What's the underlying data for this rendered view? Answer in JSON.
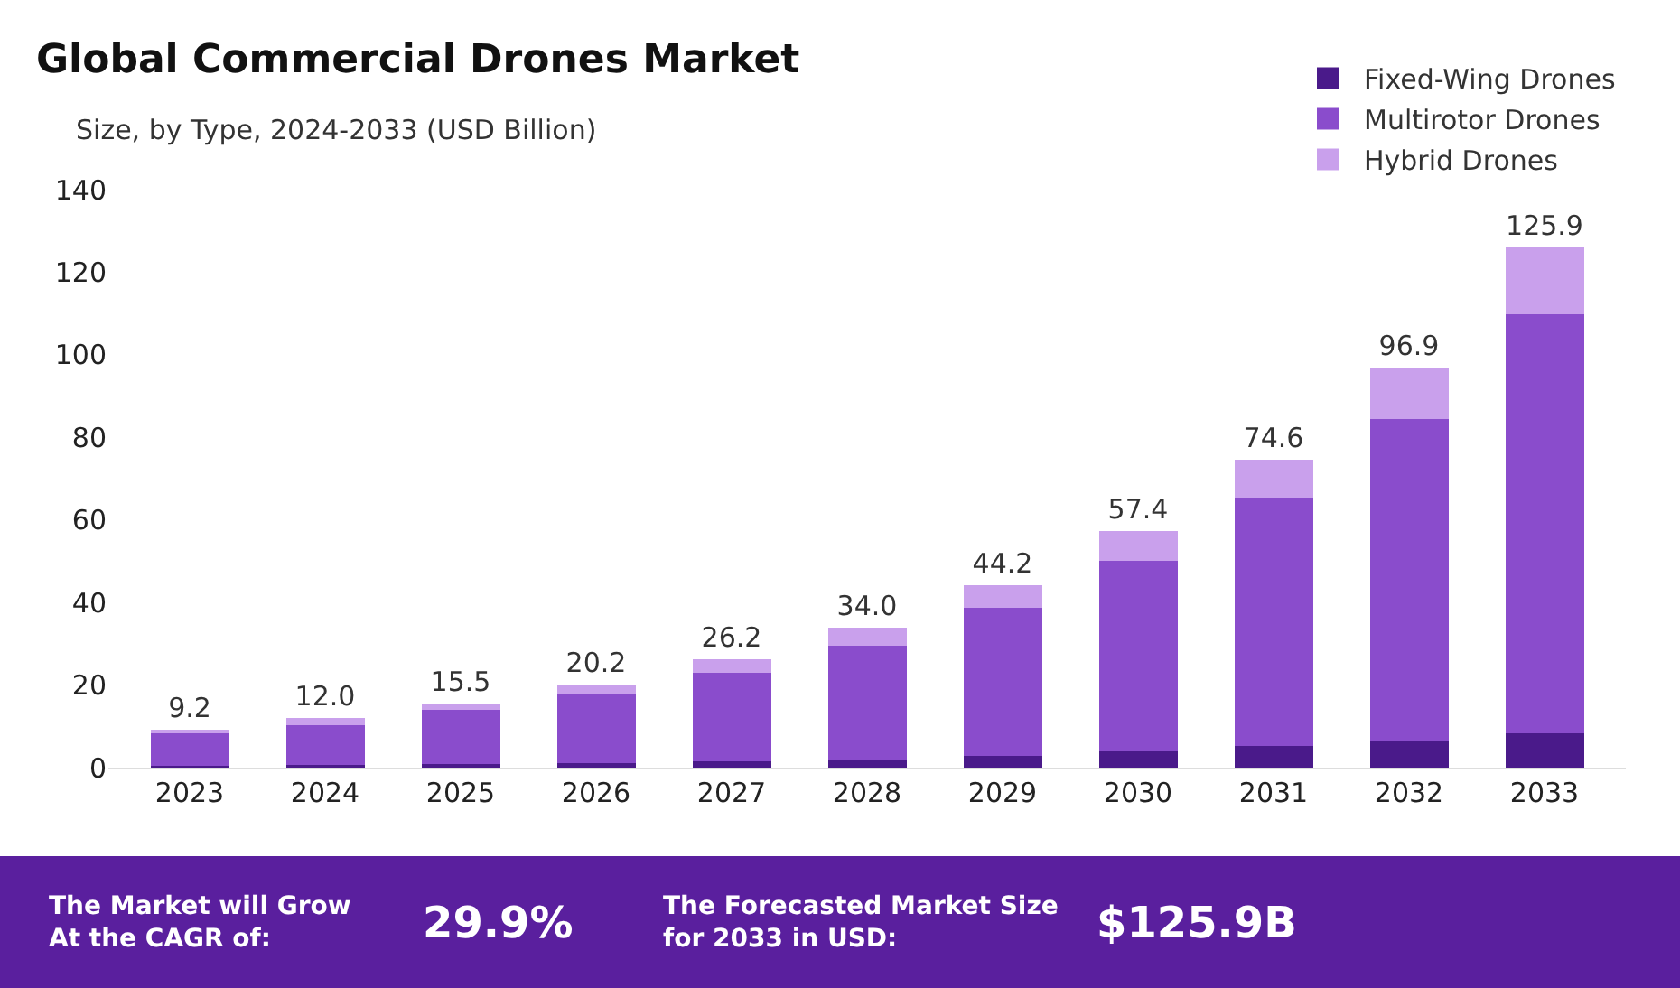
{
  "chart_data": {
    "type": "bar",
    "title": "Global Commercial Drones Market",
    "subtitle": "Size, by Type, 2024-2033 (USD Billion)",
    "categories": [
      "2023",
      "2024",
      "2025",
      "2026",
      "2027",
      "2028",
      "2029",
      "2030",
      "2031",
      "2032",
      "2033"
    ],
    "stacked": true,
    "series": [
      {
        "name": "Fixed-Wing Drones",
        "color": "#4a1a8a",
        "values": [
          0.4,
          0.6,
          0.8,
          1.0,
          1.5,
          1.9,
          2.8,
          4.0,
          5.2,
          6.3,
          8.4
        ]
      },
      {
        "name": "Multirotor Drones",
        "color": "#8a4ccc",
        "values": [
          8.0,
          9.7,
          13.2,
          16.7,
          21.4,
          27.6,
          36.0,
          46.1,
          60.1,
          78.2,
          101.5
        ]
      },
      {
        "name": "Hybrid Drones",
        "color": "#c9a0ec",
        "values": [
          0.8,
          1.7,
          1.5,
          2.5,
          3.3,
          4.5,
          5.4,
          7.3,
          9.3,
          12.4,
          16.0
        ]
      }
    ],
    "totals": [
      "9.2",
      "12.0",
      "15.5",
      "20.2",
      "26.2",
      "34.0",
      "44.2",
      "57.4",
      "74.6",
      "96.9",
      "125.9"
    ],
    "ylim": [
      0,
      140
    ],
    "yticks": [
      0,
      20,
      40,
      60,
      80,
      100,
      120,
      140
    ],
    "legend": "top right",
    "annotations": [
      "The Market will Grow At the CAGR of:",
      "29.9%",
      "The Forecasted Market Size for 2033 in USD:",
      "$125.9B"
    ]
  }
}
